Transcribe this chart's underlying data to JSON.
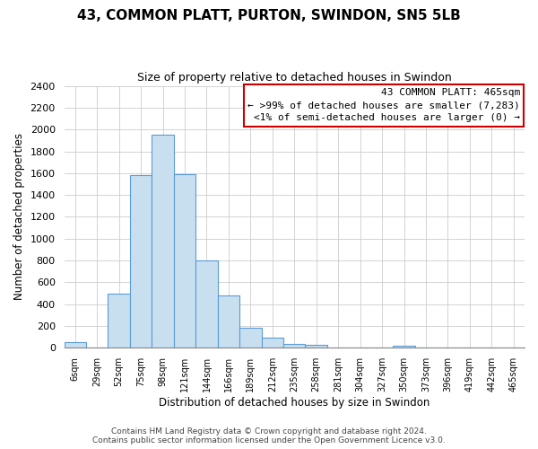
{
  "title": "43, COMMON PLATT, PURTON, SWINDON, SN5 5LB",
  "subtitle": "Size of property relative to detached houses in Swindon",
  "xlabel": "Distribution of detached houses by size in Swindon",
  "ylabel": "Number of detached properties",
  "bin_labels": [
    "6sqm",
    "29sqm",
    "52sqm",
    "75sqm",
    "98sqm",
    "121sqm",
    "144sqm",
    "166sqm",
    "189sqm",
    "212sqm",
    "235sqm",
    "258sqm",
    "281sqm",
    "304sqm",
    "327sqm",
    "350sqm",
    "373sqm",
    "396sqm",
    "419sqm",
    "442sqm",
    "465sqm"
  ],
  "bar_heights": [
    50,
    0,
    500,
    1580,
    1950,
    1590,
    800,
    480,
    185,
    90,
    35,
    30,
    0,
    0,
    0,
    20,
    0,
    0,
    0,
    0,
    0
  ],
  "bar_color": "#c8dff0",
  "bar_edge_color": "#5b9bd5",
  "annotation_title": "43 COMMON PLATT: 465sqm",
  "annotation_line1": "← >99% of detached houses are smaller (7,283)",
  "annotation_line2": "<1% of semi-detached houses are larger (0) →",
  "annotation_box_color": "#ffffff",
  "annotation_box_edge": "#cc0000",
  "ylim": [
    0,
    2400
  ],
  "yticks": [
    0,
    200,
    400,
    600,
    800,
    1000,
    1200,
    1400,
    1600,
    1800,
    2000,
    2200,
    2400
  ],
  "footer_line1": "Contains HM Land Registry data © Crown copyright and database right 2024.",
  "footer_line2": "Contains public sector information licensed under the Open Government Licence v3.0.",
  "background_color": "#ffffff",
  "grid_color": "#cccccc"
}
